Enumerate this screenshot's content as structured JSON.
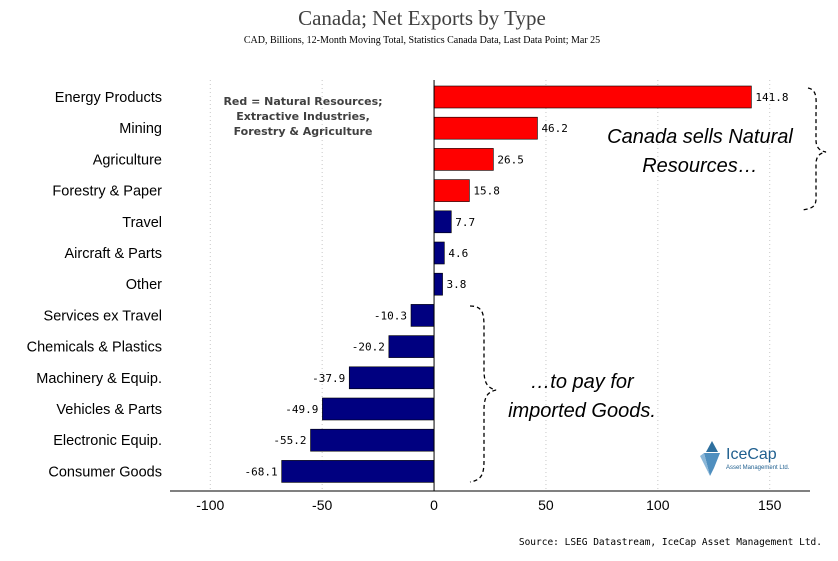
{
  "chart_data": {
    "type": "bar",
    "orientation": "horizontal",
    "title": "Canada; Net Exports by Type",
    "subtitle": "CAD, Billions, 12-Month Moving Total,  Statistics Canada Data, Last Data Point; Mar 25",
    "categories": [
      "Energy Products",
      "Mining",
      "Agriculture",
      "Forestry & Paper",
      "Travel",
      "Aircraft & Parts",
      "Other",
      "Services ex Travel",
      "Chemicals & Plastics",
      "Machinery & Equip.",
      "Vehicles & Parts",
      "Electronic Equip.",
      "Consumer Goods"
    ],
    "values": [
      141.8,
      46.2,
      26.5,
      15.8,
      7.7,
      4.6,
      3.8,
      -10.3,
      -20.2,
      -37.9,
      -49.9,
      -55.2,
      -68.1
    ],
    "value_labels": [
      "141.8",
      "46.2",
      "26.5",
      "15.8",
      "7.7",
      "4.6",
      "3.8",
      "-10.3",
      "-20.2",
      "-37.9",
      "-49.9",
      "-55.2",
      "-68.1"
    ],
    "bar_colors": [
      "#ff0000",
      "#ff0000",
      "#ff0000",
      "#ff0000",
      "#000080",
      "#000080",
      "#000080",
      "#000080",
      "#000080",
      "#000080",
      "#000080",
      "#000080",
      "#000080"
    ],
    "xlim": [
      -118,
      168
    ],
    "xticks": [
      -100,
      -50,
      0,
      50,
      100,
      150
    ],
    "xtick_labels": [
      "-100",
      "-50",
      "0",
      "50",
      "100",
      "150"
    ],
    "xlabel": "",
    "ylabel": "",
    "grid": "vertical dotted",
    "legend_note": [
      "Red = Natural Resources;",
      "Extractive Industries,",
      "Forestry & Agriculture"
    ],
    "annotations": {
      "top": [
        "Canada sells Natural",
        "Resources…"
      ],
      "bottom": [
        "…to pay for",
        "imported Goods."
      ]
    },
    "source": "Source: LSEG Datastream, IceCap Asset Management Ltd."
  },
  "logo": {
    "name": "IceCap",
    "tagline": "Asset Management Ltd."
  },
  "colors": {
    "natural_resources": "#ff0000",
    "other": "#000080",
    "logo_blue": "#2d6f9e"
  }
}
